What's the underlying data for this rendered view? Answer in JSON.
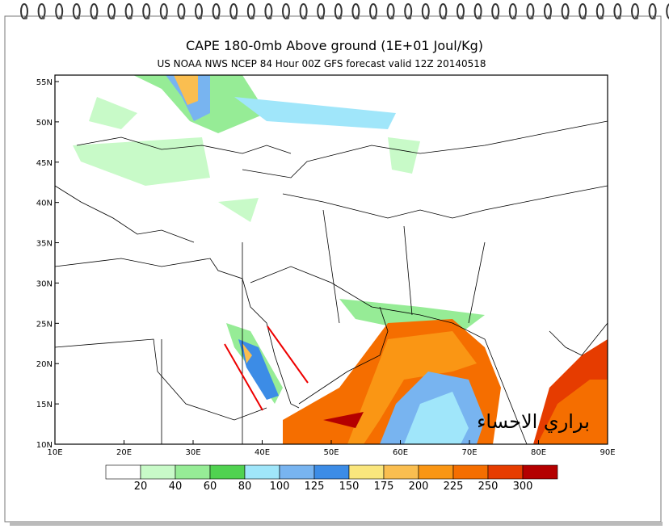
{
  "header": {
    "title": "CAPE 180-0mb Above ground (1E+01 Joul/Kg)",
    "subtitle": "US NOAA NWS NCEP 84 Hour 00Z GFS forecast valid 12Z 20140518"
  },
  "map": {
    "lat_labels": [
      "55N",
      "50N",
      "45N",
      "40N",
      "35N",
      "30N",
      "25N",
      "20N",
      "15N",
      "10N"
    ],
    "lon_labels": [
      "10E",
      "20E",
      "30E",
      "40E",
      "50E",
      "60E",
      "70E",
      "80E",
      "90E"
    ],
    "watermark": "براري الاحساء"
  },
  "colorbar": {
    "colors": [
      "#ffffff",
      "#c8fac8",
      "#96ec96",
      "#50d250",
      "#a0e6fa",
      "#78b4f0",
      "#3c8ce6",
      "#fae67d",
      "#fabe50",
      "#fa9614",
      "#f56e00",
      "#e63c00",
      "#b40000"
    ],
    "labels": [
      "20",
      "40",
      "60",
      "80",
      "100",
      "125",
      "150",
      "175",
      "200",
      "225",
      "250",
      "300"
    ]
  }
}
